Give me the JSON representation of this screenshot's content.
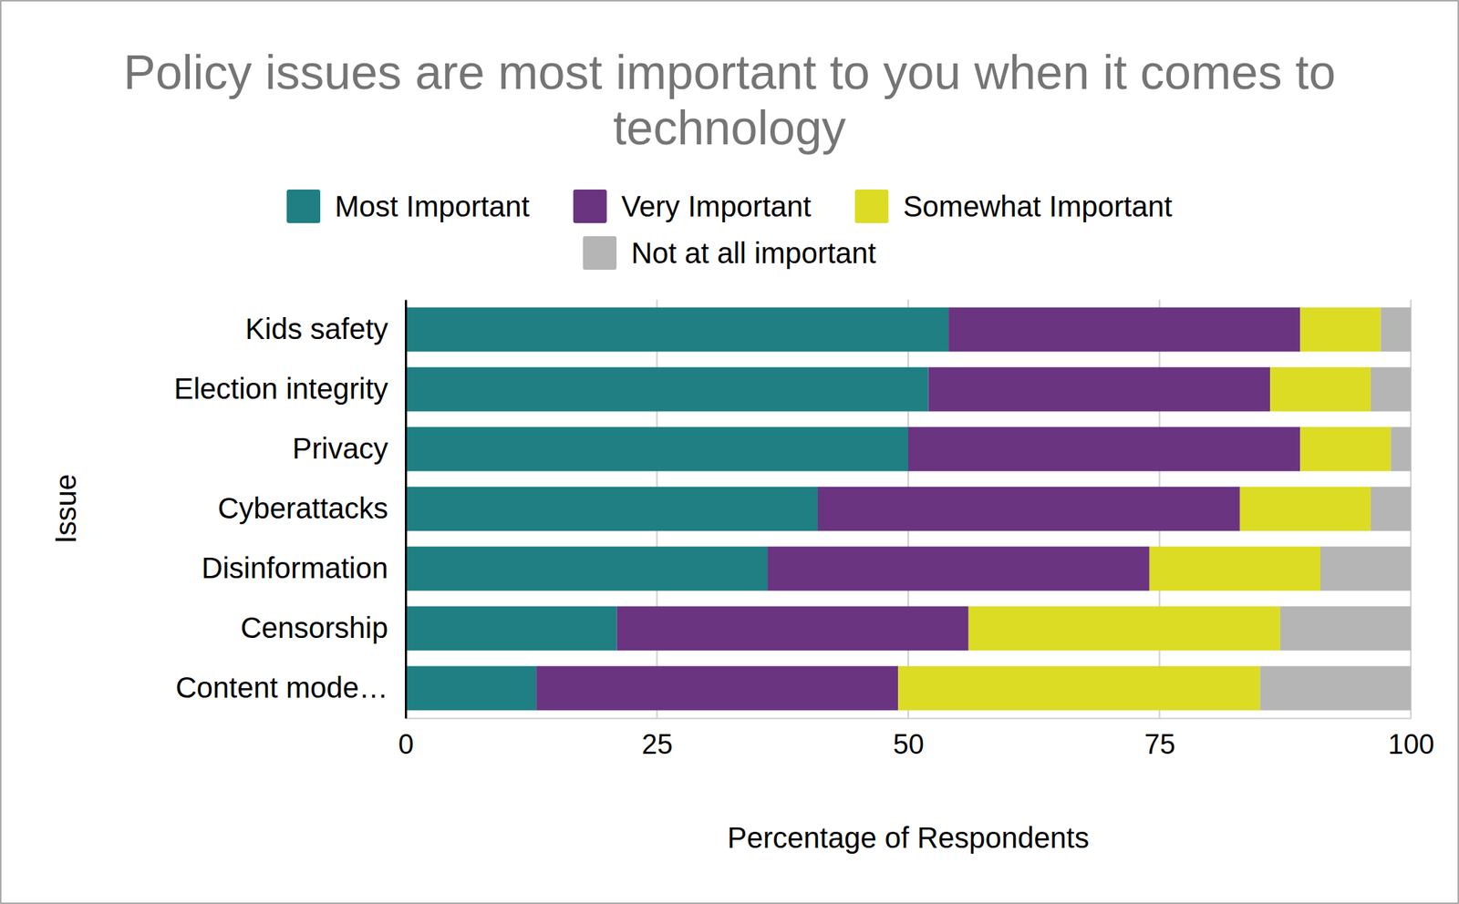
{
  "chart_data": {
    "type": "bar",
    "orientation": "horizontal",
    "stacked": true,
    "title": "Policy issues are most important to you when it comes to technology",
    "x_label": "Percentage of Respondents",
    "y_label": "Issue",
    "categories": [
      "Kids safety",
      "Election integrity",
      "Privacy",
      "Cyberattacks",
      "Disinformation",
      "Censorship",
      "Content mode…"
    ],
    "series": [
      {
        "name": "Most Important",
        "color": "#1f7f83",
        "values": [
          54,
          52,
          50,
          41,
          36,
          21,
          13
        ]
      },
      {
        "name": "Very Important",
        "color": "#6a3480",
        "values": [
          35,
          34,
          39,
          42,
          38,
          35,
          36
        ]
      },
      {
        "name": "Somewhat Important",
        "color": "#dcdc24",
        "values": [
          8,
          10,
          9,
          13,
          17,
          31,
          36
        ]
      },
      {
        "name": "Not at all important",
        "color": "#b5b5b5",
        "values": [
          3,
          4,
          2,
          4,
          9,
          13,
          15
        ]
      }
    ],
    "xlim": [
      0,
      100
    ],
    "xticks": [
      0,
      25,
      50,
      75,
      100
    ],
    "grid": true,
    "legend": "top"
  }
}
